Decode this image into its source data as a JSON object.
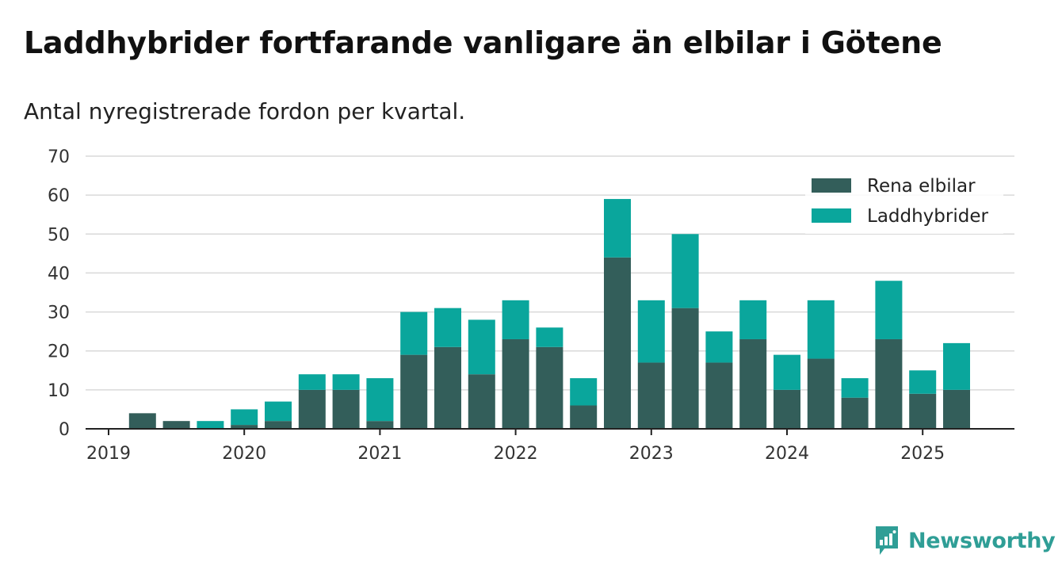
{
  "title": "Laddhybrider fortfarande vanligare än elbilar i Götene",
  "subtitle": "Antal nyregistrerade fordon per kvartal.",
  "brand": {
    "name": "Newsworthy",
    "icon": "newsworthy-logo-icon"
  },
  "colors": {
    "elbilar": "#335e5a",
    "laddhybrider": "#0aa69c",
    "grid": "#d9d9d9",
    "axis": "#222222"
  },
  "chart_data": {
    "type": "bar",
    "stacked": true,
    "categories": [
      "2019 Q1",
      "2019 Q2",
      "2019 Q3",
      "2019 Q4",
      "2020 Q1",
      "2020 Q2",
      "2020 Q3",
      "2020 Q4",
      "2021 Q1",
      "2021 Q2",
      "2021 Q3",
      "2021 Q4",
      "2022 Q1",
      "2022 Q2",
      "2022 Q3",
      "2022 Q4",
      "2023 Q1",
      "2023 Q2",
      "2023 Q3",
      "2023 Q4",
      "2024 Q1",
      "2024 Q2",
      "2024 Q3",
      "2024 Q4",
      "2025 Q1",
      "2025 Q2"
    ],
    "x_tick_labels": [
      "2019",
      "2020",
      "2021",
      "2022",
      "2023",
      "2024",
      "2025"
    ],
    "y_ticks": [
      "0",
      "10",
      "20",
      "30",
      "40",
      "50",
      "60",
      "70"
    ],
    "ylim": [
      0,
      70
    ],
    "grid": true,
    "legend_position": "top-right",
    "series": [
      {
        "name": "Rena elbilar",
        "color": "#335e5a",
        "values": [
          0,
          4,
          2,
          0,
          1,
          2,
          10,
          10,
          2,
          19,
          21,
          14,
          23,
          21,
          6,
          44,
          17,
          31,
          17,
          23,
          10,
          18,
          8,
          23,
          9,
          10
        ]
      },
      {
        "name": "Laddhybrider",
        "color": "#0aa69c",
        "values": [
          0,
          0,
          0,
          2,
          4,
          5,
          4,
          4,
          11,
          11,
          10,
          14,
          10,
          5,
          7,
          15,
          16,
          19,
          8,
          10,
          9,
          15,
          5,
          15,
          6,
          12
        ]
      }
    ]
  }
}
